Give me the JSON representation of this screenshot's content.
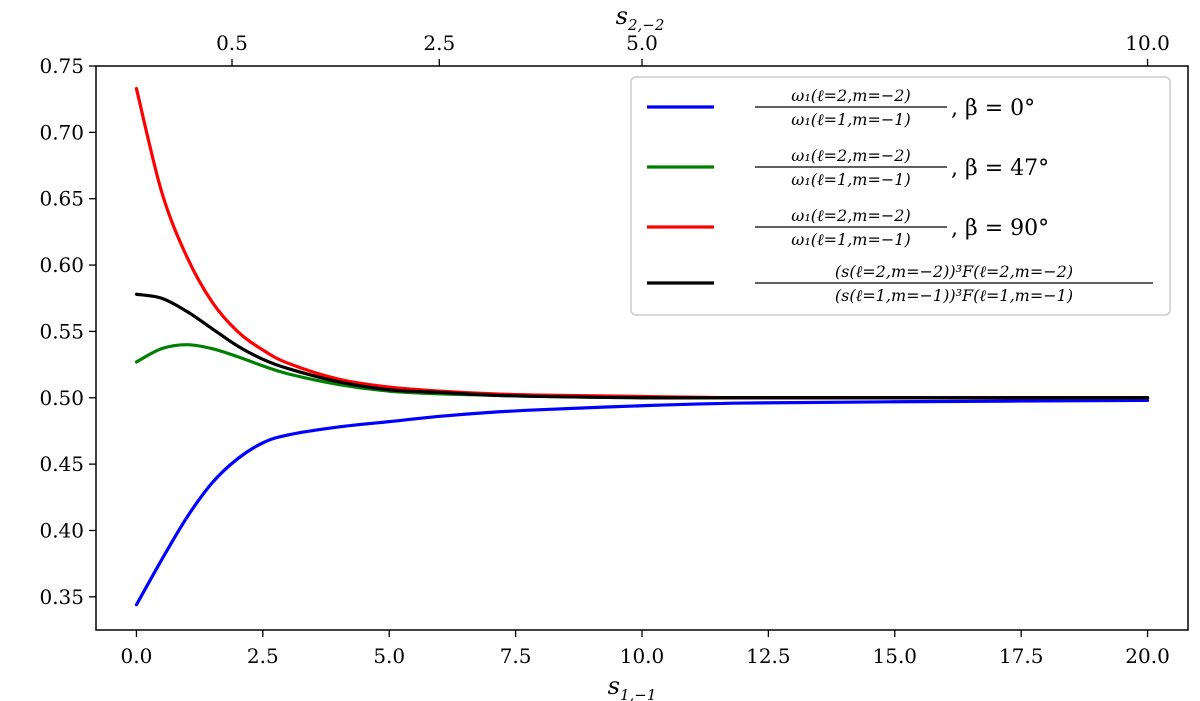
{
  "chart_data": {
    "type": "line",
    "xlabel": {
      "base": "s",
      "sub": "1,−1"
    },
    "x2label": {
      "base": "s",
      "sub": "2,−2"
    },
    "xlim": [
      -0.8,
      20.8
    ],
    "ylim": [
      0.325,
      0.75
    ],
    "xticks": [
      "0.0",
      "2.5",
      "5.0",
      "7.5",
      "10.0",
      "12.5",
      "15.0",
      "17.5",
      "20.0"
    ],
    "x2ticks": [
      "0.5",
      "2.5",
      "5.0",
      "10.0"
    ],
    "x2tick_positions_in_x_units": [
      1.89,
      5.99,
      10.0,
      20.0
    ],
    "yticks": [
      "0.35",
      "0.40",
      "0.45",
      "0.50",
      "0.55",
      "0.60",
      "0.65",
      "0.70",
      "0.75"
    ],
    "legend_position": "top-right",
    "x": [
      0,
      0.5,
      1,
      1.5,
      2,
      2.5,
      3,
      4,
      5,
      6,
      7,
      8,
      10,
      12,
      15,
      20
    ],
    "series": [
      {
        "name": "ω₁(ℓ=2,m=−2) / ω₁(ℓ=1,m=−1), β = 0°",
        "legend": {
          "num": "ω₁(ℓ=2,m=−2)",
          "den": "ω₁(ℓ=1,m=−1)",
          "suffix": ", β = 0°"
        },
        "color": "#0000ff",
        "values": [
          0.344,
          0.378,
          0.41,
          0.436,
          0.454,
          0.466,
          0.472,
          0.478,
          0.482,
          0.486,
          0.489,
          0.491,
          0.494,
          0.496,
          0.497,
          0.498
        ]
      },
      {
        "name": "ω₁(ℓ=2,m=−2) / ω₁(ℓ=1,m=−1), β = 47°",
        "legend": {
          "num": "ω₁(ℓ=2,m=−2)",
          "den": "ω₁(ℓ=1,m=−1)",
          "suffix": ", β = 47°"
        },
        "color": "#008000",
        "values": [
          0.527,
          0.537,
          0.54,
          0.537,
          0.531,
          0.524,
          0.518,
          0.51,
          0.505,
          0.503,
          0.502,
          0.501,
          0.5,
          0.5,
          0.5,
          0.5
        ]
      },
      {
        "name": "ω₁(ℓ=2,m=−2) / ω₁(ℓ=1,m=−1), β = 90°",
        "legend": {
          "num": "ω₁(ℓ=2,m=−2)",
          "den": "ω₁(ℓ=1,m=−1)",
          "suffix": ", β = 90°"
        },
        "color": "#ff0000",
        "values": [
          0.733,
          0.655,
          0.606,
          0.572,
          0.55,
          0.536,
          0.526,
          0.514,
          0.508,
          0.505,
          0.503,
          0.502,
          0.501,
          0.5,
          0.5,
          0.5
        ]
      },
      {
        "name": "(s(ℓ=2,m=−2))³F(ℓ=2,m=−2) / (s(ℓ=1,m=−1))³F(ℓ=1,m=−1)",
        "legend": {
          "num": "(s(ℓ=2,m=−2))³F(ℓ=2,m=−2)",
          "den": "(s(ℓ=1,m=−1))³F(ℓ=1,m=−1)",
          "suffix": ""
        },
        "color": "#000000",
        "values": [
          0.578,
          0.575,
          0.565,
          0.552,
          0.539,
          0.529,
          0.522,
          0.512,
          0.506,
          0.504,
          0.502,
          0.501,
          0.5,
          0.5,
          0.5,
          0.5
        ]
      }
    ]
  }
}
